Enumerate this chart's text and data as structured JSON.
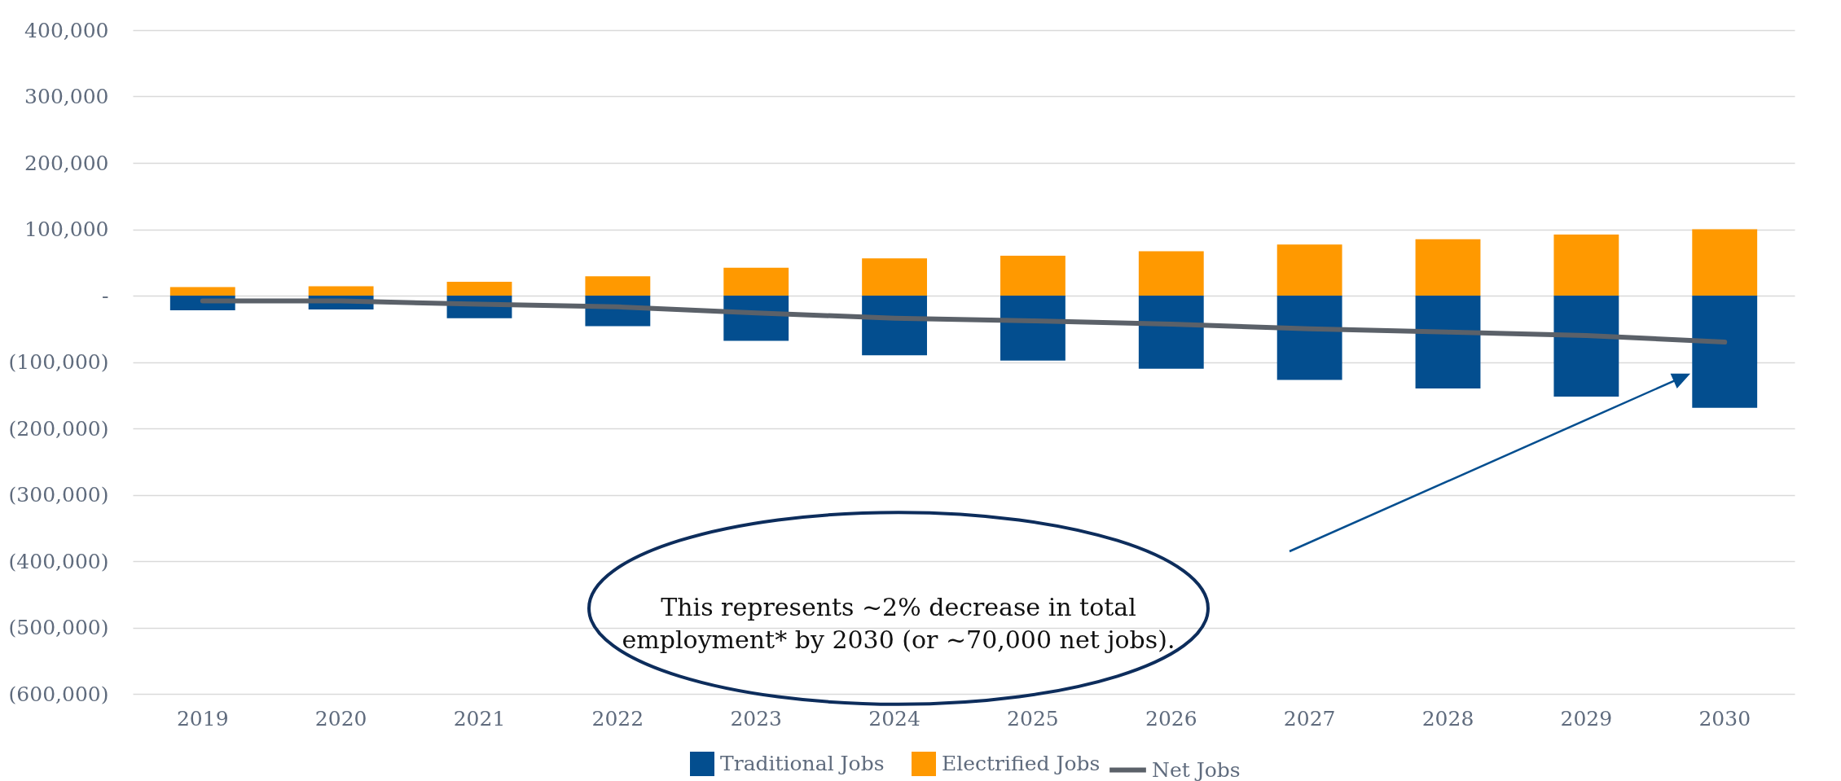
{
  "chart_data": {
    "type": "bar",
    "stacked": true,
    "legend": "bottom",
    "grid": "y",
    "categories": [
      "2019",
      "2020",
      "2021",
      "2022",
      "2023",
      "2024",
      "2025",
      "2026",
      "2027",
      "2028",
      "2029",
      "2030"
    ],
    "series": [
      {
        "name": "Traditional Jobs",
        "color": "#034e8f",
        "values": [
          -22000,
          -21000,
          -34000,
          -46000,
          -68000,
          -90000,
          -98000,
          -110000,
          -127000,
          -140000,
          -152000,
          -169000
        ]
      },
      {
        "name": "Electrified Jobs",
        "color": "#ff9900",
        "values": [
          13000,
          14000,
          21000,
          29000,
          42000,
          56000,
          60000,
          67000,
          77000,
          85000,
          92000,
          100000
        ]
      },
      {
        "name": "Net Jobs",
        "type": "line",
        "color": "#5b6169",
        "values": [
          -8000,
          -8000,
          -13000,
          -17000,
          -26000,
          -34000,
          -38000,
          -43000,
          -50000,
          -55000,
          -60000,
          -70000
        ]
      }
    ],
    "ylim": [
      -600000,
      400000
    ],
    "yticks": [
      {
        "value": 400000,
        "label": "400,000"
      },
      {
        "value": 300000,
        "label": "300,000"
      },
      {
        "value": 200000,
        "label": "200,000"
      },
      {
        "value": 100000,
        "label": "100,000"
      },
      {
        "value": 0,
        "label": "-"
      },
      {
        "value": -100000,
        "label": "(100,000)"
      },
      {
        "value": -200000,
        "label": "(200,000)"
      },
      {
        "value": -300000,
        "label": "(300,000)"
      },
      {
        "value": -400000,
        "label": "(400,000)"
      },
      {
        "value": -500000,
        "label": "(500,000)"
      },
      {
        "value": -600000,
        "label": "(600,000)"
      }
    ],
    "annotations": [
      "This represents ~2% decrease in total employment* by 2030 (or ~70,000 net jobs)."
    ]
  }
}
